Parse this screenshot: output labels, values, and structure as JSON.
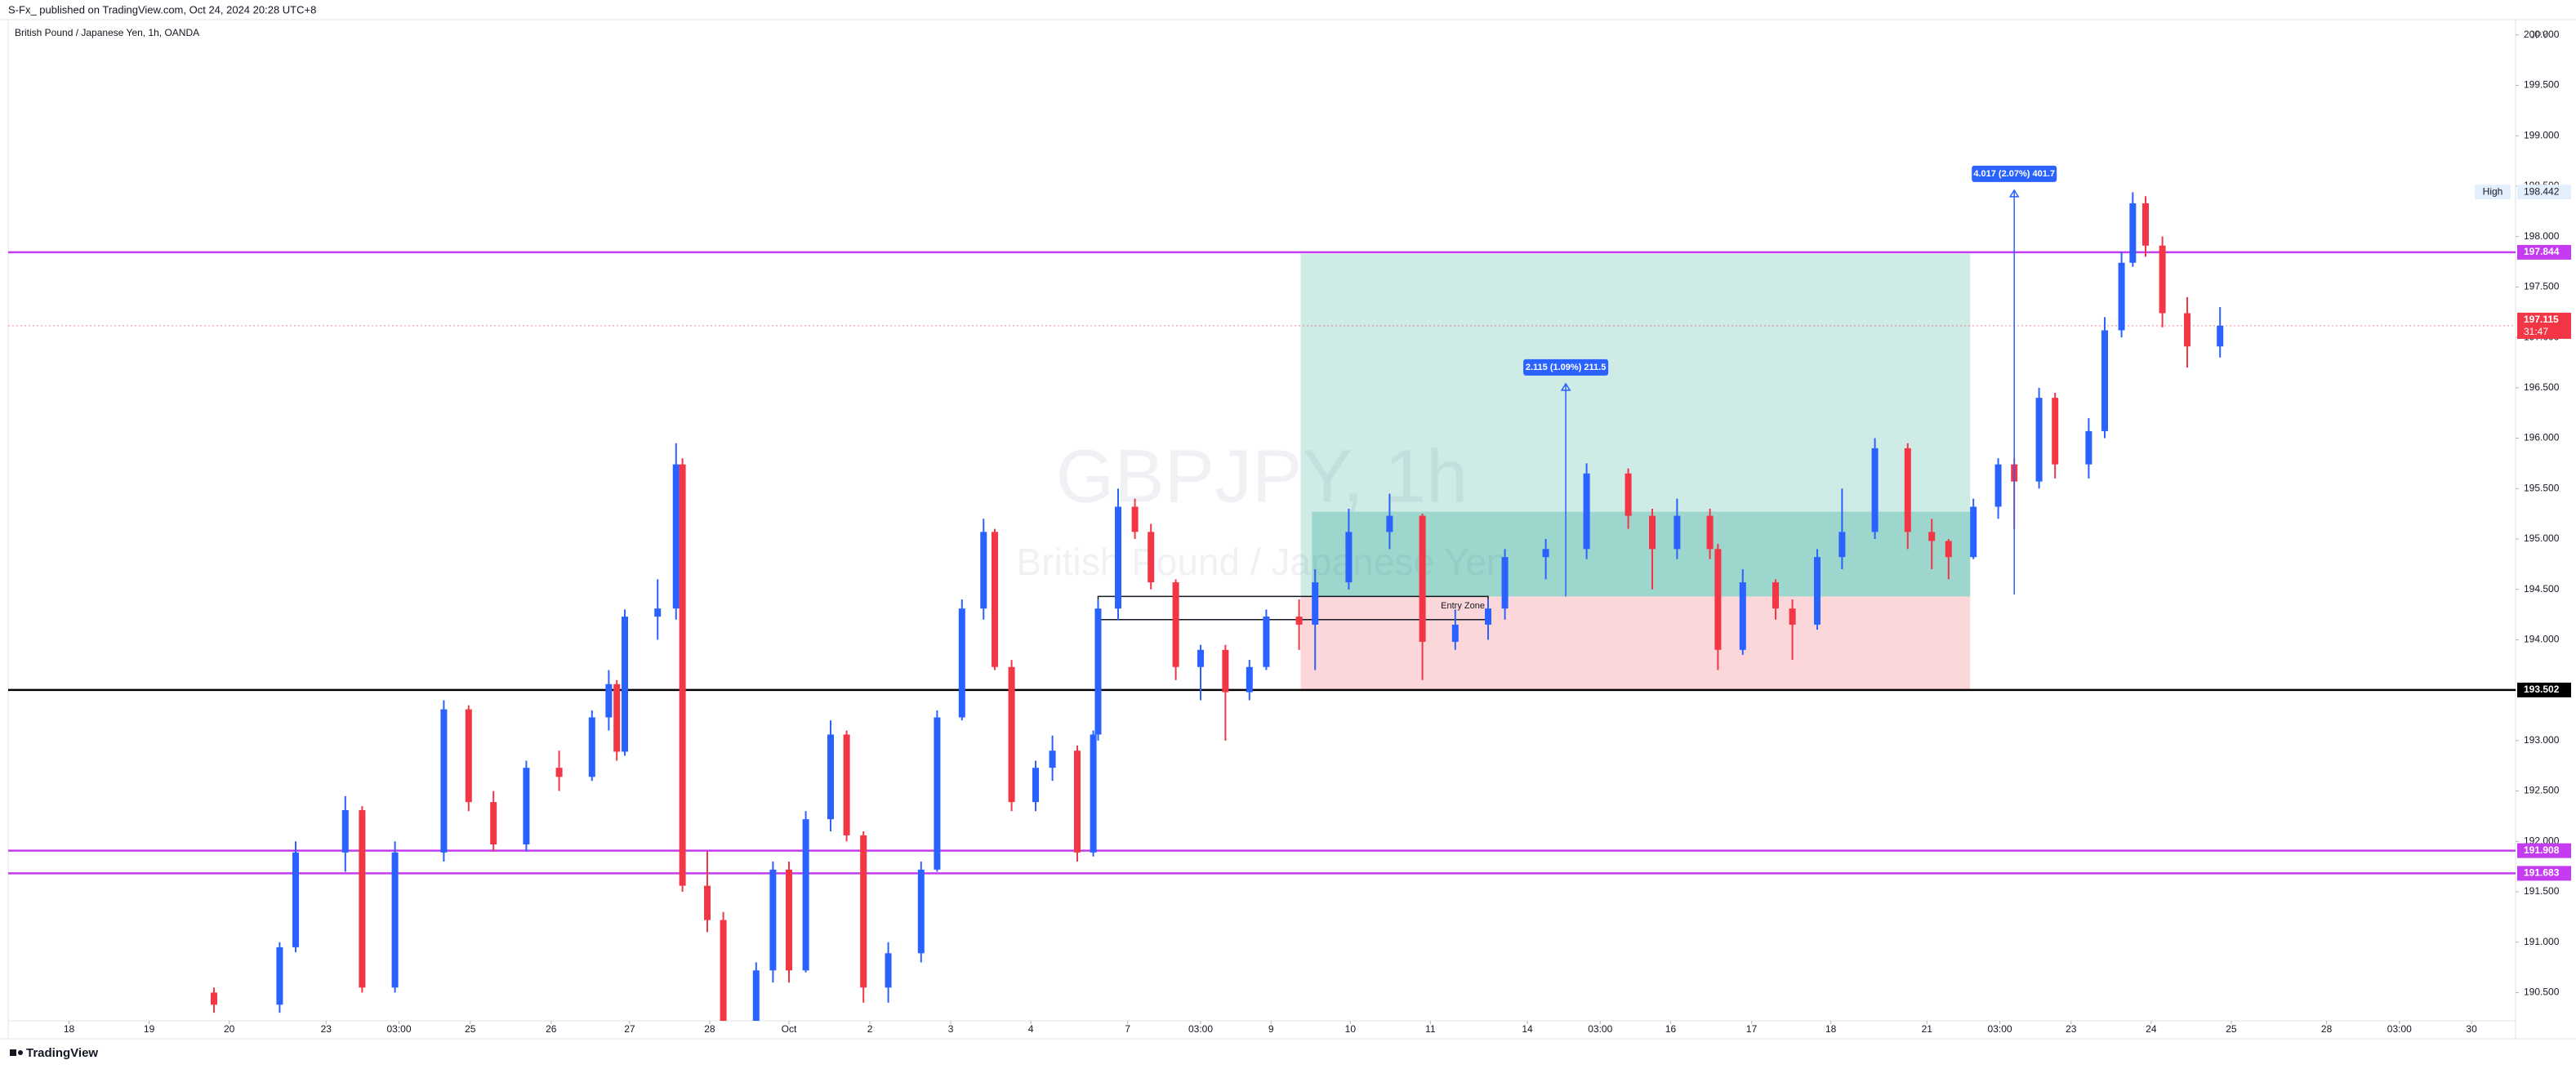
{
  "header": {
    "publisher": "S-Fx_ published on TradingView.com, Oct 24, 2024 20:28 UTC+8"
  },
  "footer": {
    "brand": "TradingView"
  },
  "chart_data": {
    "type": "candlestick",
    "subtitle": "British Pound / Japanese Yen, 1h, OANDA",
    "watermark": "GBPJPY, 1h",
    "watermark_sub": "British Pound / Japanese Yen",
    "currency": "JPY",
    "up_color": "#2962ff",
    "down_color": "#f23645",
    "xlim": [
      -0.76,
      30.55
    ],
    "ylim": [
      190.22,
      200.12
    ],
    "xticks": [
      {
        "value": 0,
        "label": "18"
      },
      {
        "value": 1.0,
        "label": "19"
      },
      {
        "value": 2.0,
        "label": "20"
      },
      {
        "value": 3.21,
        "label": "23"
      },
      {
        "value": 4.12,
        "label": "03:00"
      },
      {
        "value": 5.01,
        "label": "25"
      },
      {
        "value": 6.02,
        "label": "26"
      },
      {
        "value": 7.0,
        "label": "27"
      },
      {
        "value": 8.0,
        "label": "28"
      },
      {
        "value": 8.99,
        "label": "Oct"
      },
      {
        "value": 10.0,
        "label": "2"
      },
      {
        "value": 11.01,
        "label": "3"
      },
      {
        "value": 12.01,
        "label": "4"
      },
      {
        "value": 13.22,
        "label": "7"
      },
      {
        "value": 14.13,
        "label": "03:00"
      },
      {
        "value": 15.01,
        "label": "9"
      },
      {
        "value": 16.0,
        "label": "10"
      },
      {
        "value": 17.0,
        "label": "11"
      },
      {
        "value": 18.21,
        "label": "14"
      },
      {
        "value": 19.12,
        "label": "03:00"
      },
      {
        "value": 20.0,
        "label": "16"
      },
      {
        "value": 21.01,
        "label": "17"
      },
      {
        "value": 22.0,
        "label": "18"
      },
      {
        "value": 23.2,
        "label": "21"
      },
      {
        "value": 24.11,
        "label": "03:00"
      },
      {
        "value": 25.0,
        "label": "23"
      },
      {
        "value": 26.0,
        "label": "24"
      },
      {
        "value": 27.0,
        "label": "25"
      },
      {
        "value": 28.19,
        "label": "28"
      },
      {
        "value": 29.1,
        "label": "03:00"
      },
      {
        "value": 30.0,
        "label": "30"
      }
    ],
    "yticks": [
      {
        "value": 190.5,
        "label": "190.500"
      },
      {
        "value": 191,
        "label": "191.000"
      },
      {
        "value": 191.5,
        "label": "191.500"
      },
      {
        "value": 192,
        "label": "192.000"
      },
      {
        "value": 192.5,
        "label": "192.500"
      },
      {
        "value": 193,
        "label": "193.000"
      },
      {
        "value": 193.5,
        "label": "193.500"
      },
      {
        "value": 194,
        "label": "194.000"
      },
      {
        "value": 194.5,
        "label": "194.500"
      },
      {
        "value": 195,
        "label": "195.000"
      },
      {
        "value": 195.5,
        "label": "195.500"
      },
      {
        "value": 196,
        "label": "196.000"
      },
      {
        "value": 196.5,
        "label": "196.500"
      },
      {
        "value": 197,
        "label": "197.000"
      },
      {
        "value": 197.5,
        "label": "197.500"
      },
      {
        "value": 198,
        "label": "198.000"
      },
      {
        "value": 198.5,
        "label": "198.500"
      },
      {
        "value": 199,
        "label": "199.000"
      },
      {
        "value": 199.5,
        "label": "199.500"
      },
      {
        "value": 200,
        "label": "200.000"
      }
    ],
    "x": [
      1.81,
      2.63,
      2.83,
      3.45,
      3.66,
      4.07,
      4.68,
      4.99,
      5.3,
      5.71,
      6.12,
      6.53,
      6.74,
      6.84,
      6.94,
      7.35,
      7.58,
      7.66,
      7.97,
      8.17,
      8.58,
      8.79,
      8.99,
      9.2,
      9.51,
      9.71,
      9.92,
      10.23,
      10.64,
      10.84,
      11.15,
      11.42,
      11.56,
      11.77,
      12.07,
      12.28,
      12.59,
      12.79,
      12.85,
      13.1,
      13.31,
      13.51,
      13.82,
      14.13,
      14.44,
      14.74,
      14.95,
      15.36,
      15.56,
      15.98,
      16.49,
      16.9,
      17.31,
      17.72,
      17.93,
      18.44,
      18.95,
      19.47,
      19.77,
      20.08,
      20.49,
      20.59,
      20.9,
      21.31,
      21.52,
      21.83,
      22.14,
      22.55,
      22.96,
      23.26,
      23.47,
      23.78,
      24.09,
      24.29,
      24.6,
      24.8,
      25.22,
      25.42,
      25.63,
      25.77,
      25.93,
      26.14,
      26.45,
      26.86
    ],
    "open": [
      190.5,
      190.38,
      190.95,
      191.89,
      192.31,
      190.55,
      191.89,
      193.31,
      192.39,
      191.97,
      192.73,
      192.64,
      193.23,
      193.56,
      192.89,
      194.23,
      194.31,
      195.74,
      191.56,
      191.22,
      190.22,
      190.72,
      191.72,
      190.72,
      192.22,
      193.06,
      192.06,
      190.55,
      190.89,
      191.72,
      193.23,
      194.31,
      195.07,
      193.73,
      192.39,
      192.73,
      192.9,
      191.89,
      193.06,
      194.31,
      195.32,
      195.07,
      194.57,
      193.73,
      193.9,
      193.48,
      193.73,
      194.23,
      194.15,
      194.57,
      195.07,
      195.23,
      193.98,
      194.15,
      194.31,
      194.82,
      194.9,
      195.65,
      195.23,
      194.9,
      195.23,
      194.9,
      193.9,
      194.57,
      194.31,
      194.15,
      194.82,
      195.07,
      195.9,
      195.07,
      194.98,
      194.82,
      195.32,
      195.74,
      195.57,
      196.4,
      195.74,
      196.07,
      197.07,
      197.74,
      198.33,
      197.91,
      197.24,
      196.91
    ],
    "high": [
      190.55,
      191.0,
      192.0,
      192.45,
      192.35,
      192.0,
      193.4,
      193.35,
      192.5,
      192.8,
      192.9,
      193.3,
      193.7,
      193.6,
      194.3,
      194.6,
      195.95,
      195.8,
      191.9,
      191.3,
      190.8,
      191.8,
      191.8,
      192.3,
      193.2,
      193.1,
      192.1,
      191.0,
      191.8,
      193.3,
      194.4,
      195.2,
      195.1,
      193.8,
      192.8,
      193.05,
      192.95,
      193.1,
      194.4,
      195.5,
      195.4,
      195.15,
      194.6,
      193.95,
      193.95,
      193.8,
      194.3,
      194.4,
      194.7,
      195.3,
      195.45,
      195.25,
      194.3,
      194.4,
      194.9,
      195.0,
      195.75,
      195.7,
      195.3,
      195.4,
      195.3,
      194.95,
      194.7,
      194.6,
      194.4,
      194.9,
      195.5,
      196.0,
      195.95,
      195.2,
      195.0,
      195.4,
      195.8,
      195.8,
      196.5,
      196.45,
      196.2,
      197.2,
      197.85,
      198.44,
      198.4,
      198.0,
      197.4,
      197.3
    ],
    "low": [
      190.3,
      190.3,
      190.9,
      191.7,
      190.5,
      190.5,
      191.8,
      192.3,
      191.9,
      191.9,
      192.5,
      192.6,
      193.1,
      192.8,
      192.85,
      194.0,
      194.2,
      191.5,
      191.1,
      190.1,
      190.1,
      190.6,
      190.6,
      190.7,
      192.1,
      192.0,
      190.4,
      190.4,
      190.8,
      191.7,
      193.2,
      194.2,
      193.7,
      192.3,
      192.3,
      192.6,
      191.8,
      191.85,
      193.0,
      194.2,
      195.0,
      194.5,
      193.6,
      193.4,
      193.0,
      193.4,
      193.7,
      193.9,
      193.7,
      194.5,
      194.9,
      193.6,
      193.9,
      194.0,
      194.2,
      194.6,
      194.8,
      195.1,
      194.5,
      194.8,
      194.8,
      193.7,
      193.85,
      194.2,
      193.8,
      194.1,
      194.7,
      195.0,
      194.9,
      194.7,
      194.6,
      194.8,
      195.2,
      195.1,
      195.5,
      195.6,
      195.6,
      196.0,
      197.0,
      197.7,
      197.8,
      197.1,
      196.7,
      196.8
    ],
    "close": [
      190.38,
      190.95,
      191.89,
      192.31,
      190.55,
      191.89,
      193.31,
      192.39,
      191.97,
      192.73,
      192.64,
      193.23,
      193.56,
      192.89,
      194.23,
      194.31,
      195.74,
      191.56,
      191.22,
      190.22,
      190.72,
      191.72,
      190.72,
      192.22,
      193.06,
      192.06,
      190.55,
      190.89,
      191.72,
      193.23,
      194.31,
      195.07,
      193.73,
      192.39,
      192.73,
      192.9,
      191.89,
      193.06,
      194.31,
      195.32,
      195.07,
      194.57,
      193.73,
      193.9,
      193.48,
      193.73,
      194.23,
      194.15,
      194.57,
      195.07,
      195.23,
      193.98,
      194.15,
      194.31,
      194.82,
      194.9,
      195.65,
      195.23,
      194.9,
      195.23,
      194.9,
      193.9,
      194.57,
      194.31,
      194.15,
      194.82,
      195.07,
      195.9,
      195.07,
      194.98,
      194.82,
      195.32,
      195.74,
      195.57,
      196.4,
      195.74,
      196.07,
      197.07,
      197.74,
      198.33,
      197.91,
      197.24,
      196.91,
      197.115
    ],
    "levels": [
      {
        "value": 197.844,
        "color": "#c43bf0"
      },
      {
        "value": 193.502,
        "color": "#000000"
      },
      {
        "value": 191.908,
        "color": "#c43bf0"
      },
      {
        "value": 191.683,
        "color": "#c43bf0"
      }
    ],
    "last": {
      "value": 197.115,
      "countdown": "31:47",
      "color": "#f23645"
    },
    "high_marker": {
      "label": "High",
      "value": 198.442
    },
    "position": {
      "x": [
        15.38,
        23.74
      ],
      "target": 197.83,
      "entry": 194.43,
      "stop": 193.5
    },
    "zone": {
      "x": [
        15.52,
        23.74
      ],
      "y": [
        194.43,
        195.27
      ]
    },
    "entry_zone": {
      "label": "Entry Zone",
      "x": [
        12.85,
        17.72
      ],
      "y": [
        194.2,
        194.43
      ]
    },
    "measures": [
      {
        "x": 18.69,
        "from": 194.43,
        "to": 196.54,
        "label": "2.115 (1.09%) 211.5"
      },
      {
        "x": 24.29,
        "from": 194.45,
        "to": 198.46,
        "label": "4.017 (2.07%) 401.7"
      }
    ]
  }
}
